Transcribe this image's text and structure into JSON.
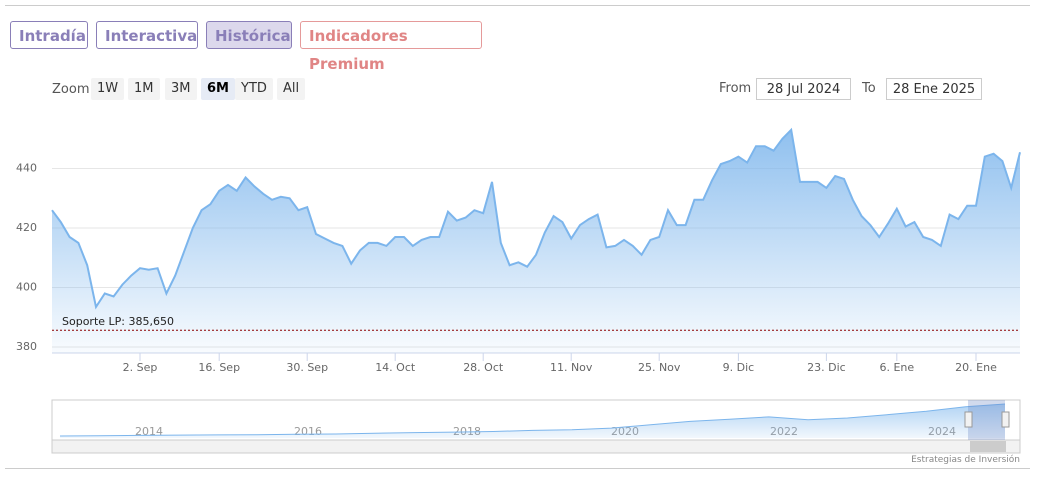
{
  "tabs": [
    "Intradía",
    "Interactiva",
    "Histórica",
    "Indicadores Premium"
  ],
  "zoom": {
    "label": "Zoom",
    "buttons": [
      "1W",
      "1M",
      "3M",
      "6M",
      "YTD",
      "All"
    ]
  },
  "range": {
    "from_label": "From",
    "from": "28 Jul 2024",
    "to_label": "To",
    "to": "28 Ene 2025"
  },
  "credit": "Estrategias de Inversión",
  "chart_data": {
    "type": "area",
    "color": "#7cb5ec",
    "grid": true,
    "ylim": [
      378,
      459
    ],
    "yticks": [
      380,
      400,
      420,
      440
    ],
    "plot_lines": [
      {
        "label": "Soporte LP: 385,650",
        "value": 385.65,
        "color": "#8b0000"
      }
    ],
    "categories": [
      null,
      null,
      null,
      null,
      null,
      null,
      null,
      null,
      null,
      null,
      "2. Sep",
      null,
      null,
      null,
      null,
      null,
      null,
      null,
      null,
      "16. Sep",
      null,
      null,
      null,
      null,
      null,
      null,
      null,
      null,
      null,
      "30. Sep",
      null,
      null,
      null,
      null,
      null,
      null,
      null,
      null,
      null,
      "14. Oct",
      null,
      null,
      null,
      null,
      null,
      null,
      null,
      null,
      null,
      "28. Oct",
      null,
      null,
      null,
      null,
      null,
      null,
      null,
      null,
      null,
      "11. Nov",
      null,
      null,
      null,
      null,
      null,
      null,
      null,
      null,
      null,
      "25. Nov",
      null,
      null,
      null,
      null,
      null,
      null,
      null,
      null,
      "9. Dic",
      null,
      null,
      null,
      null,
      null,
      null,
      null,
      null,
      null,
      "23. Dic",
      null,
      null,
      null,
      null,
      null,
      null,
      null,
      "6. Ene",
      null,
      null,
      null,
      null,
      null,
      null,
      null,
      null,
      "20. Ene",
      null,
      null,
      null,
      null,
      null
    ],
    "values": [
      426,
      422,
      417,
      415,
      407.5,
      393.5,
      398,
      397,
      401,
      404,
      406.5,
      406,
      406.5,
      398,
      404,
      412,
      420,
      426,
      428,
      432.5,
      434.5,
      432.5,
      437,
      434,
      431.5,
      429.5,
      430.5,
      430,
      426,
      427,
      418,
      416.5,
      415,
      414,
      408,
      412.5,
      415,
      415,
      414,
      417,
      417,
      414,
      416,
      417,
      417,
      425.5,
      422.5,
      423.5,
      426,
      425,
      435.5,
      415,
      407.5,
      408.5,
      407,
      411,
      418.5,
      424,
      422,
      416.5,
      421,
      423,
      424.5,
      413.5,
      414,
      416,
      414,
      411,
      416,
      417,
      426,
      421,
      421,
      429.5,
      429.5,
      436,
      441.5,
      442.5,
      444,
      442,
      447.5,
      447.5,
      446,
      450,
      453,
      435.5,
      435.5,
      435.5,
      433.5,
      437.5,
      436.5,
      429.5,
      424,
      421,
      417,
      421.5,
      426.5,
      420.5,
      422,
      417,
      416,
      414,
      424.5,
      423,
      427.5,
      427.5,
      444,
      445,
      442.5,
      433.5,
      445.5
    ]
  },
  "navigator": {
    "labels": [
      "2014",
      "2016",
      "2018",
      "2020",
      "2022",
      "2024"
    ],
    "values": [
      160,
      162,
      165,
      168,
      170,
      172,
      175,
      178,
      185,
      190,
      195,
      200,
      210,
      215,
      230,
      260,
      290,
      310,
      330,
      305,
      320,
      350,
      380,
      420,
      445
    ]
  }
}
